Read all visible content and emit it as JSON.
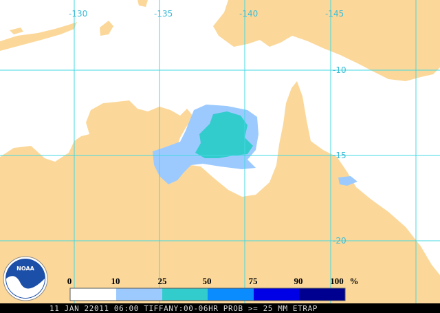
{
  "map": {
    "lon_labels": [
      "-130",
      "-135",
      "-140",
      "-145"
    ],
    "lat_labels": [
      "-10",
      "-15",
      "-20"
    ],
    "logo": "NOAA",
    "legend": {
      "labels": [
        "0",
        "10",
        "25",
        "50",
        "75",
        "90",
        "100"
      ],
      "unit": "%"
    },
    "footer": "11 JAN 22011 06:00 TIFFANY:00-06HR PROB >= 25 MM ETRAP"
  }
}
